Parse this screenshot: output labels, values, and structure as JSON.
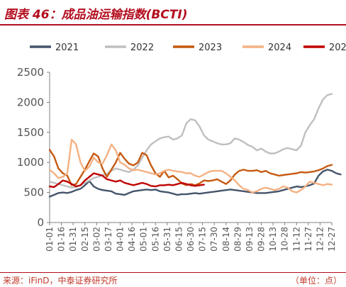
{
  "header": {
    "title": "图表 46：成品油运输指数(BCTI)"
  },
  "footer": {
    "source": "来源：iFinD，中泰证券研究所",
    "unit": "（单位：点）"
  },
  "chart_data": {
    "type": "line",
    "title": "图表 46：成品油运输指数(BCTI)",
    "xlabel": "",
    "ylabel": "",
    "ylim": [
      0,
      2500
    ],
    "yticks": [
      0,
      500,
      1000,
      1500,
      2000,
      2500
    ],
    "grid": false,
    "legend_position": "top",
    "xticks": [
      "01-01",
      "01-16",
      "01-31",
      "02-15",
      "03-02",
      "03-17",
      "04-01",
      "04-16",
      "05-01",
      "05-16",
      "05-31",
      "06-15",
      "06-30",
      "07-15",
      "07-30",
      "08-14",
      "08-29",
      "09-13",
      "09-28",
      "10-13",
      "10-28",
      "11-12",
      "11-27",
      "12-12",
      "12-27"
    ],
    "series": [
      {
        "name": "2021",
        "color": "#44546a",
        "values": [
          430,
          460,
          490,
          500,
          490,
          510,
          540,
          560,
          620,
          690,
          600,
          560,
          540,
          530,
          520,
          480,
          470,
          460,
          490,
          520,
          530,
          540,
          550,
          540,
          550,
          520,
          510,
          500,
          480,
          460,
          470,
          470,
          480,
          490,
          480,
          490,
          500,
          510,
          520,
          530,
          540,
          550,
          540,
          530,
          520,
          510,
          500,
          490,
          490,
          490,
          500,
          510,
          520,
          540,
          560,
          580,
          600,
          590,
          600,
          620,
          650,
          780,
          850,
          880,
          860,
          820,
          800
        ]
      },
      {
        "name": "2022",
        "color": "#bfbfbf",
        "values": [
          680,
          660,
          640,
          620,
          600,
          580,
          590,
          620,
          660,
          700,
          740,
          760,
          790,
          810,
          860,
          900,
          880,
          860,
          840,
          880,
          950,
          1080,
          1200,
          1300,
          1350,
          1400,
          1420,
          1430,
          1380,
          1400,
          1450,
          1650,
          1720,
          1700,
          1600,
          1450,
          1380,
          1350,
          1320,
          1300,
          1300,
          1320,
          1400,
          1380,
          1340,
          1290,
          1260,
          1200,
          1230,
          1180,
          1150,
          1150,
          1180,
          1220,
          1240,
          1220,
          1200,
          1280,
          1500,
          1620,
          1720,
          1900,
          2050,
          2120,
          2140
        ]
      },
      {
        "name": "2023",
        "color": "#c55a11",
        "values": [
          1210,
          1100,
          900,
          820,
          780,
          620,
          640,
          760,
          880,
          1020,
          1150,
          1100,
          900,
          760,
          880,
          1000,
          1160,
          1060,
          980,
          950,
          1000,
          1160,
          1120,
          950,
          820,
          760,
          860,
          750,
          780,
          720,
          650,
          620,
          640,
          620,
          650,
          700,
          690,
          700,
          720,
          680,
          640,
          700,
          800,
          860,
          880,
          860,
          860,
          870,
          840,
          860,
          820,
          800,
          780,
          790,
          800,
          810,
          820,
          840,
          830,
          840,
          850,
          870,
          900,
          940,
          960
        ]
      },
      {
        "name": "2024",
        "color": "#f4b183",
        "values": [
          880,
          820,
          740,
          760,
          820,
          1380,
          1300,
          1000,
          860,
          930,
          1080,
          1000,
          980,
          1120,
          1300,
          1200,
          1000,
          960,
          900,
          870,
          880,
          860,
          840,
          820,
          800,
          820,
          860,
          880,
          860,
          850,
          840,
          820,
          820,
          780,
          760,
          800,
          840,
          860,
          860,
          860,
          820,
          760,
          700,
          620,
          560,
          540,
          500,
          520,
          560,
          580,
          560,
          540,
          560,
          600,
          580,
          520,
          500,
          540,
          600,
          680,
          660,
          640,
          620,
          640,
          630
        ]
      },
      {
        "name": "2025",
        "color": "#c00000",
        "values": [
          600,
          590,
          640,
          700,
          680,
          640,
          600,
          620,
          700,
          760,
          820,
          800,
          780,
          720,
          700,
          680,
          700,
          660,
          640,
          620,
          640,
          660,
          640,
          610,
          600,
          620,
          620,
          630,
          620,
          640,
          660,
          640,
          620,
          610,
          620,
          630
        ]
      }
    ]
  }
}
